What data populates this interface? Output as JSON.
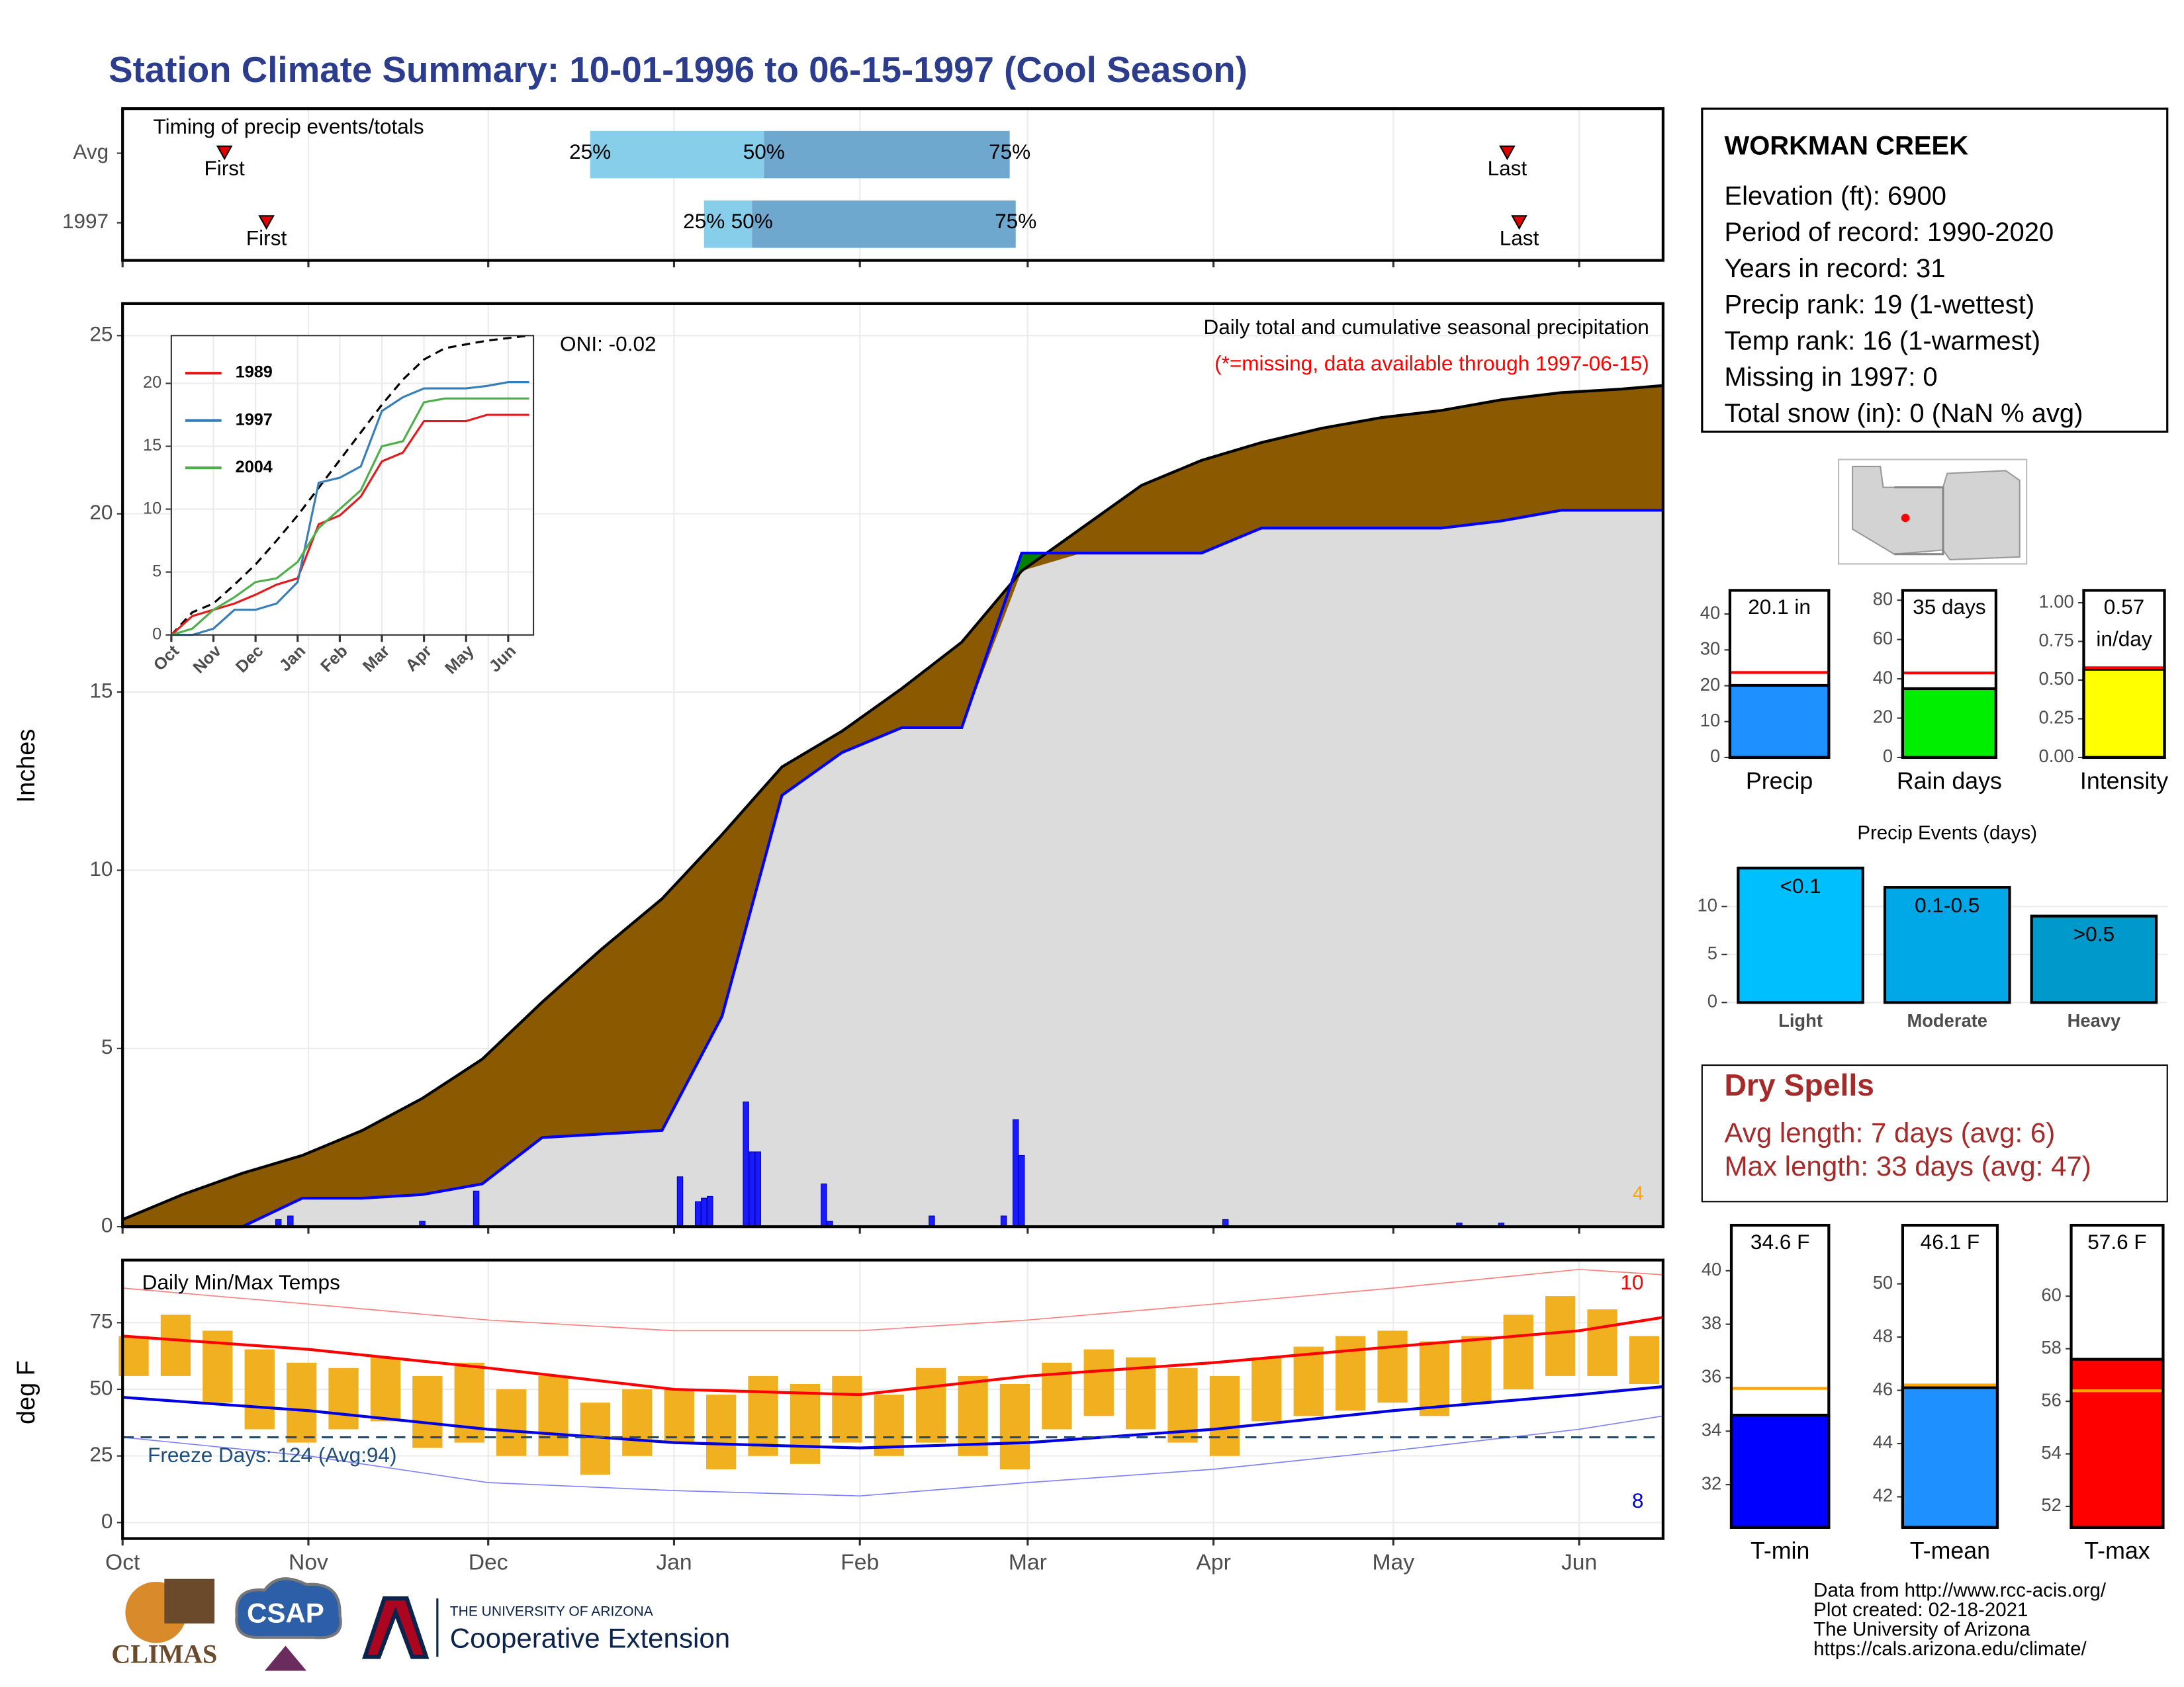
{
  "title": "Station Climate Summary: 10-01-1996 to 06-15-1997 (Cool Season)",
  "chart_data": [
    {
      "type": "timing",
      "title": "Timing of precip events/totals",
      "marker_labels": {
        "first": "First",
        "last": "Last",
        "q25": "25%",
        "q50": "50%",
        "q75": "75%"
      },
      "rows": [
        {
          "label": "Avg",
          "first": 17,
          "q25": 78,
          "q50": 107,
          "q75": 148,
          "last": 231
        },
        {
          "label": "1997",
          "first": 24,
          "q25": 97,
          "q50": 105,
          "q75": 149,
          "last": 233
        }
      ],
      "colors": [
        "#87ceeb",
        "#6fa8cf"
      ],
      "xlim": [
        0,
        257
      ],
      "xticks": [
        0,
        31,
        61,
        92,
        123,
        151,
        182,
        212,
        243
      ],
      "grid": true
    },
    {
      "type": "area",
      "title": "Daily total and cumulative seasonal precipitation",
      "subtitle": "(*=missing, data available through 1997-06-15)",
      "annotations": [
        "ONI: -0.02",
        "4"
      ],
      "ylabel": "Inches",
      "x": [
        0,
        10,
        20,
        30,
        40,
        50,
        60,
        70,
        80,
        90,
        100,
        110,
        120,
        130,
        140,
        150,
        160,
        170,
        180,
        190,
        200,
        210,
        220,
        230,
        240,
        250,
        257
      ],
      "series": [
        {
          "color": "#000000",
          "fill": "#8b5a00",
          "values": [
            0.2,
            0.9,
            1.5,
            2.0,
            2.7,
            3.6,
            4.7,
            6.3,
            7.8,
            9.2,
            11.0,
            12.9,
            13.9,
            15.1,
            16.4,
            18.4,
            19.6,
            20.8,
            21.5,
            22.0,
            22.4,
            22.7,
            22.9,
            23.2,
            23.4,
            23.5,
            23.6
          ]
        },
        {
          "color": "#0000ff",
          "fill": "#dcdcdc",
          "values": [
            0,
            0,
            0,
            0.8,
            0.8,
            0.9,
            1.2,
            2.5,
            2.6,
            2.7,
            5.9,
            12.1,
            13.3,
            14.0,
            14.0,
            18.9,
            18.9,
            18.9,
            18.9,
            19.6,
            19.6,
            19.6,
            19.6,
            19.8,
            20.1,
            20.1,
            20.1
          ]
        }
      ],
      "above_color": "#008000",
      "bars": {
        "color": "#1a1aff",
        "x": [
          26,
          28,
          50,
          59,
          93,
          96,
          97,
          98,
          104,
          105,
          106,
          117,
          118,
          135,
          147,
          149,
          150,
          184,
          223,
          230
        ],
        "values": [
          0.2,
          0.3,
          0.15,
          1.0,
          1.4,
          0.7,
          0.8,
          0.85,
          3.5,
          2.1,
          2.1,
          1.2,
          0.15,
          0.3,
          0.3,
          3.0,
          2.0,
          0.2,
          0.1,
          0.1
        ]
      },
      "xlim": [
        0,
        257
      ],
      "xticks": [
        0,
        31,
        61,
        92,
        123,
        151,
        182,
        212,
        243
      ],
      "ylim": [
        0,
        25.9
      ],
      "yticks": [
        0,
        5,
        10,
        15,
        20,
        25
      ],
      "grid": true
    },
    {
      "type": "line",
      "legend": "top-left",
      "x": [
        0,
        0.5,
        1,
        1.5,
        2,
        2.5,
        3,
        3.5,
        4,
        4.5,
        5,
        5.5,
        6,
        6.5,
        7,
        7.5,
        8,
        8.5
      ],
      "series": [
        {
          "color": "#000000",
          "dash": true,
          "values": [
            0,
            1.8,
            2.5,
            4,
            5.6,
            7.5,
            9.5,
            11.7,
            13.9,
            16.1,
            18.3,
            20.3,
            21.9,
            22.8,
            23.1,
            23.4,
            23.6,
            23.8
          ]
        },
        {
          "name": "1989",
          "color": "#e41a1c",
          "values": [
            0,
            1.5,
            2.0,
            2.5,
            3.2,
            4.0,
            4.5,
            8.8,
            9.5,
            11,
            13.8,
            14.5,
            17,
            17,
            17,
            17.5,
            17.5,
            17.5
          ]
        },
        {
          "name": "1997",
          "color": "#377eb8",
          "values": [
            0,
            0,
            0.5,
            2,
            2,
            2.5,
            4.2,
            12.1,
            12.5,
            13.4,
            17.8,
            18.9,
            19.6,
            19.6,
            19.6,
            19.8,
            20.1,
            20.1
          ]
        },
        {
          "name": "2004",
          "color": "#4daf4a",
          "values": [
            0,
            0.5,
            2,
            3,
            4.2,
            4.5,
            5.8,
            8.5,
            10,
            11.5,
            15,
            15.4,
            18.5,
            18.8,
            18.8,
            18.8,
            18.8,
            18.8
          ]
        }
      ],
      "xlim": [
        0,
        8.6
      ],
      "xticks": [
        {
          "value": 0,
          "label": "Oct"
        },
        {
          "value": 1,
          "label": "Nov"
        },
        {
          "value": 2,
          "label": "Dec"
        },
        {
          "value": 3,
          "label": "Jan"
        },
        {
          "value": 4,
          "label": "Feb"
        },
        {
          "value": 5,
          "label": "Mar"
        },
        {
          "value": 6,
          "label": "Apr"
        },
        {
          "value": 7,
          "label": "May"
        },
        {
          "value": 8,
          "label": "Jun"
        }
      ],
      "ylim": [
        0,
        23.8
      ],
      "yticks": [
        0,
        5,
        10,
        15,
        20
      ],
      "grid": true
    },
    {
      "type": "floating_bar",
      "title": "Daily Min/Max Temps",
      "annotations": [
        "Freeze Days: 124 (Avg:94)",
        "10",
        "8"
      ],
      "ylabel": "deg F",
      "color": "#f0b020",
      "x": [
        0,
        7,
        14,
        21,
        28,
        35,
        42,
        49,
        56,
        63,
        70,
        77,
        84,
        91,
        98,
        105,
        112,
        119,
        126,
        133,
        140,
        147,
        154,
        161,
        168,
        175,
        182,
        189,
        196,
        203,
        210,
        217,
        224,
        231,
        238,
        245,
        252
      ],
      "high": [
        70,
        78,
        72,
        65,
        60,
        58,
        62,
        55,
        60,
        50,
        55,
        45,
        50,
        50,
        48,
        55,
        52,
        55,
        48,
        58,
        55,
        52,
        60,
        65,
        62,
        58,
        55,
        62,
        66,
        70,
        72,
        68,
        70,
        78,
        85,
        80,
        70
      ],
      "low": [
        55,
        55,
        45,
        35,
        30,
        35,
        38,
        28,
        30,
        25,
        25,
        18,
        25,
        30,
        20,
        25,
        22,
        30,
        25,
        30,
        25,
        20,
        35,
        40,
        35,
        30,
        25,
        38,
        40,
        42,
        45,
        40,
        45,
        50,
        55,
        55,
        52
      ],
      "lines": [
        {
          "color": "#ff8080",
          "width": 0.8,
          "x": [
            0,
            31,
            61,
            92,
            123,
            151,
            182,
            212,
            243,
            257
          ],
          "values": [
            88,
            82,
            76,
            72,
            72,
            76,
            82,
            88,
            95,
            93
          ]
        },
        {
          "color": "#ff0000",
          "width": 2,
          "x": [
            0,
            31,
            61,
            92,
            123,
            151,
            182,
            212,
            243,
            257
          ],
          "values": [
            70,
            65,
            58,
            50,
            48,
            55,
            60,
            66,
            72,
            77
          ]
        },
        {
          "color": "#0000e0",
          "width": 2,
          "x": [
            0,
            31,
            61,
            92,
            123,
            151,
            182,
            212,
            243,
            257
          ],
          "values": [
            47,
            42,
            35,
            30,
            28,
            30,
            35,
            42,
            48,
            51
          ]
        },
        {
          "color": "#8080ff",
          "width": 0.8,
          "x": [
            0,
            31,
            61,
            92,
            123,
            151,
            182,
            212,
            243,
            257
          ],
          "values": [
            32,
            25,
            15,
            12,
            10,
            15,
            20,
            27,
            35,
            40
          ]
        }
      ],
      "freeze_line": 32,
      "freeze_color": "#1f4e79",
      "xlim": [
        0,
        257
      ],
      "xticks": [
        {
          "value": 0,
          "label": "Oct"
        },
        {
          "value": 31,
          "label": "Nov"
        },
        {
          "value": 61,
          "label": "Dec"
        },
        {
          "value": 92,
          "label": "Jan"
        },
        {
          "value": 123,
          "label": "Feb"
        },
        {
          "value": 151,
          "label": "Mar"
        },
        {
          "value": 182,
          "label": "Apr"
        },
        {
          "value": 212,
          "label": "May"
        },
        {
          "value": 243,
          "label": "Jun"
        }
      ],
      "ylim": [
        -6,
        98.5
      ],
      "yticks": [
        0,
        25,
        50,
        75
      ],
      "grid": true
    },
    {
      "type": "bar",
      "categories": [
        "Precip"
      ],
      "values": [
        20.1
      ],
      "value_labels": [
        "20.1 in"
      ],
      "color": "#1e90ff",
      "reference": 23.7,
      "reference_color": "#ff0000",
      "ylim": [
        0,
        46.6
      ],
      "yticks": [
        0,
        10,
        20,
        30,
        40
      ]
    },
    {
      "type": "bar",
      "categories": [
        "Rain days"
      ],
      "values": [
        35
      ],
      "value_labels": [
        "35 days"
      ],
      "color": "#00ee00",
      "reference": 43,
      "reference_color": "#ff0000",
      "ylim": [
        0,
        85
      ],
      "yticks": [
        0,
        20,
        40,
        60,
        80
      ]
    },
    {
      "type": "bar",
      "categories": [
        "Intensity"
      ],
      "values": [
        0.57
      ],
      "value_labels": [
        "0.57 in/day"
      ],
      "color": "#ffff00",
      "reference": 0.58,
      "reference_color": "#ff0000",
      "ylim": [
        0,
        1.08
      ],
      "yticks": [
        {
          "value": 0,
          "label": "0.00"
        },
        {
          "value": 0.25,
          "label": "0.25"
        },
        {
          "value": 0.5,
          "label": "0.50"
        },
        {
          "value": 0.75,
          "label": "0.75"
        },
        {
          "value": 1,
          "label": "1.00"
        }
      ]
    },
    {
      "type": "bar",
      "title": "Precip Events (days)",
      "categories": [
        "Light",
        "Moderate",
        "Heavy"
      ],
      "values": [
        14,
        12,
        9
      ],
      "ranges": [
        "<0.1",
        "0.1-0.5",
        ">0.5"
      ],
      "colors": [
        "#00bfff",
        "#00a8e8",
        "#0099cc"
      ],
      "ylim": [
        0,
        14.5
      ],
      "yticks": [
        0,
        5,
        10
      ],
      "grid": true
    },
    {
      "type": "bar",
      "categories": [
        "T-min"
      ],
      "values": [
        34.6
      ],
      "value_labels": [
        "34.6 F"
      ],
      "color": "#0000ff",
      "reference": 35.6,
      "reference_color": "#ffa500",
      "ylim": [
        30.4,
        41.7
      ],
      "yticks": [
        32,
        34,
        36,
        38,
        40
      ]
    },
    {
      "type": "bar",
      "categories": [
        "T-mean"
      ],
      "values": [
        46.1
      ],
      "value_labels": [
        "46.1 F"
      ],
      "color": "#1e90ff",
      "reference": 46.2,
      "reference_color": "#ffa500",
      "ylim": [
        40.85,
        52.2
      ],
      "yticks": [
        42,
        44,
        46,
        48,
        50
      ]
    },
    {
      "type": "bar",
      "categories": [
        "T-max"
      ],
      "values": [
        57.6
      ],
      "value_labels": [
        "57.6 F"
      ],
      "color": "#ff0000",
      "reference": 56.4,
      "reference_color": "#ffa500",
      "ylim": [
        51.2,
        62.7
      ],
      "yticks": [
        52,
        54,
        56,
        58,
        60
      ]
    }
  ],
  "station": {
    "name": "WORKMAN CREEK",
    "lines": [
      "Elevation (ft): 6900",
      "Period of record: 1990-2020",
      "Years in record: 31",
      "Precip rank: 19 (1-wettest)",
      "Temp rank: 16 (1-warmest)",
      "Missing in 1997: 0",
      "Total snow (in): 0 (NaN % avg)"
    ]
  },
  "dry_spells": {
    "title": "Dry Spells",
    "lines": [
      "Avg length: 7 days (avg: 6)",
      "Max length: 33 days (avg: 47)"
    ]
  },
  "footer": {
    "credits": [
      "Data from http://www.rcc-acis.org/",
      "Plot created: 02-18-2021",
      "The University of Arizona",
      "https://cals.arizona.edu/climate/"
    ],
    "logos": [
      "CLIMAS",
      "CSAP",
      "THE UNIVERSITY OF ARIZONA",
      "Cooperative Extension"
    ]
  }
}
